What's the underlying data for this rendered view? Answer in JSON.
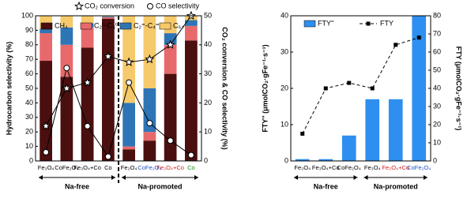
{
  "chart_data": [
    {
      "type": "bar",
      "stacked": true,
      "ylabel": "Hydrocarbon selectivity (%)",
      "y2label": "CO₂ conversion & CO selectivity (%)",
      "categories": [
        "Fe₃O₄",
        "CoFe₂O₄",
        "Fe₃O₄+Co",
        "Co",
        "Fe₃O₄",
        "CoFe₂O₄",
        "Fe₃O₄+Co",
        "Co"
      ],
      "category_colors": [
        "#000000",
        "#000000",
        "#000000",
        "#000000",
        "#000000",
        "#1f4fbf",
        "#d02020",
        "#1a8a1a"
      ],
      "groups": [
        "Na-free",
        "Na-promoted"
      ],
      "ylim": [
        0,
        100
      ],
      "yticks": [
        0,
        10,
        20,
        30,
        40,
        50,
        60,
        70,
        80,
        90,
        100
      ],
      "y2lim": [
        0,
        50
      ],
      "y2ticks": [
        0,
        10,
        20,
        30,
        40,
        50
      ],
      "series": [
        {
          "name": "CH₄",
          "color": "#4b0f0f",
          "values": [
            69,
            58,
            78,
            98,
            8,
            14,
            60,
            83
          ]
        },
        {
          "name": "C₂⁰-C₄⁰",
          "color": "#e8696b",
          "values": [
            19,
            22,
            14,
            1,
            2,
            6,
            20,
            10
          ]
        },
        {
          "name": "C₂⁼-C₄⁼",
          "color": "#2e75b6",
          "values": [
            3,
            12,
            3,
            0.5,
            30,
            30,
            8,
            4
          ]
        },
        {
          "name": "C₅₊",
          "color": "#f6c96a",
          "values": [
            9,
            8,
            5,
            0.5,
            60,
            50,
            12,
            3
          ]
        },
        {
          "name": "CO₂ conversion",
          "type": "line",
          "axis": "y2",
          "marker": "star",
          "color": "#000000",
          "values": [
            12,
            25,
            27,
            36,
            34,
            35,
            40,
            50
          ]
        },
        {
          "name": "CO selectivity",
          "type": "line",
          "axis": "y2",
          "marker": "circle",
          "color": "#000000",
          "values": [
            3,
            32,
            12,
            1.5,
            27,
            13,
            7,
            2
          ]
        }
      ]
    },
    {
      "type": "bar",
      "stacked": false,
      "ylabel": "FTY'' (μmolCO₂·gFe⁻¹·s⁻¹)",
      "y2label": "FTY (μmolCO₂·gFe⁻¹·s⁻¹)",
      "categories": [
        "Fe₃O₄",
        "Fe₃O₄+Co",
        "CoFe₂O₄",
        "Fe₃O₄",
        "Fe₃O₄+Co",
        "CoFe₂O₄"
      ],
      "category_colors": [
        "#000000",
        "#000000",
        "#000000",
        "#000000",
        "#d02020",
        "#1f4fbf"
      ],
      "groups": [
        "Na-free",
        "Na-promoted"
      ],
      "ylim": [
        0,
        40
      ],
      "yticks": [
        0,
        10,
        20,
        30,
        40
      ],
      "y2lim": [
        0,
        80
      ],
      "y2ticks": [
        0,
        10,
        20,
        30,
        40,
        50,
        60,
        70,
        80
      ],
      "series": [
        {
          "name": "FTY''",
          "color": "#2e8ff0",
          "values": [
            0.5,
            0.5,
            7,
            17,
            17,
            40
          ]
        },
        {
          "name": "FTY",
          "type": "line",
          "axis": "y2",
          "marker": "square",
          "dash": true,
          "color": "#000000",
          "values": [
            15,
            40,
            43,
            40,
            64,
            68
          ]
        }
      ]
    }
  ]
}
